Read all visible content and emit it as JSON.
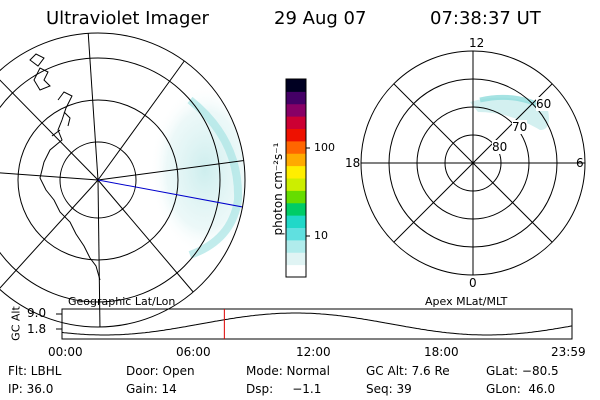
{
  "header": {
    "instrument": "Ultraviolet Imager",
    "date": "29 Aug 07",
    "time": "07:38:37 UT"
  },
  "panels": {
    "left_caption": "Geographic Lat/Lon",
    "right_caption": "Apex MLat/MLT"
  },
  "colorbar": {
    "label": "photon cm⁻²s⁻¹",
    "scale": "log",
    "range": [
      3,
      300
    ],
    "ticks": [
      {
        "value": 10,
        "label": "10"
      },
      {
        "value": 100,
        "label": "100"
      }
    ],
    "colors": [
      "#ffffff",
      "#e0f4f4",
      "#b0ecec",
      "#60e0e0",
      "#20d8c8",
      "#00cc66",
      "#66dd00",
      "#ccee00",
      "#ffee00",
      "#ffaa00",
      "#ff6600",
      "#ee1100",
      "#cc0033",
      "#880066",
      "#440066",
      "#000022"
    ]
  },
  "mlt_labels": {
    "top": "12",
    "bottom": "0",
    "left": "18",
    "right": "6"
  },
  "mlat_labels": [
    "60",
    "70",
    "80"
  ],
  "chart_data": {
    "type": "line",
    "ylabel": "GC Alt",
    "yticks": [
      "9.0",
      "1.8"
    ],
    "xticks": [
      "00:00",
      "06:00",
      "12:00",
      "18:00",
      "23:59"
    ],
    "xlim": [
      0,
      24
    ],
    "ylim": [
      1.8,
      9.0
    ],
    "current_time": 7.64
  },
  "footer": {
    "row1": [
      "Flt: LBHL",
      "Door: Open",
      "Mode: Normal",
      "GC Alt: 7.6 Re",
      "GLat: −80.5"
    ],
    "row2": [
      "IP: 36.0",
      "Gain: 14",
      "Dsp:     −1.1",
      "Seq: 39",
      "GLon:  46.0"
    ]
  }
}
